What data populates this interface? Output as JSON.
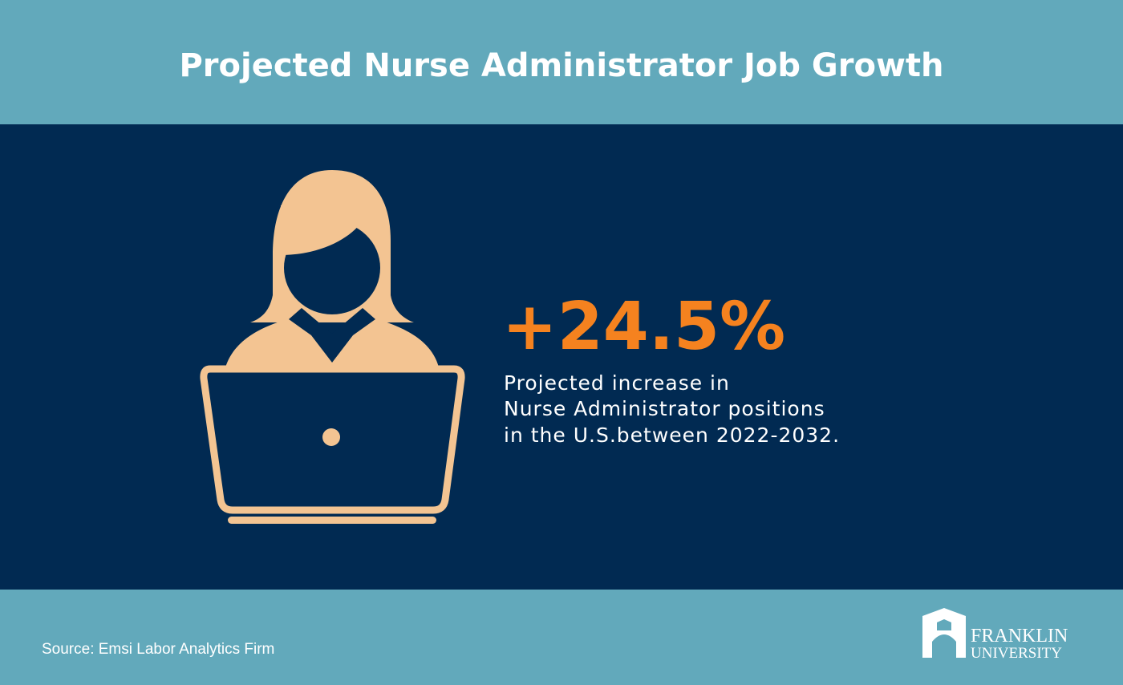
{
  "header": {
    "title": "Projected Nurse Administrator Job Growth"
  },
  "stat": {
    "value": "+24.5%",
    "description": [
      "Projected increase in",
      "Nurse Administrator positions",
      "in the U.S.between 2022-2032."
    ]
  },
  "footer": {
    "source": "Source: Emsi Labor Analytics Firm",
    "logo": [
      "FRANKLIN",
      "UNIVERSITY"
    ]
  }
}
